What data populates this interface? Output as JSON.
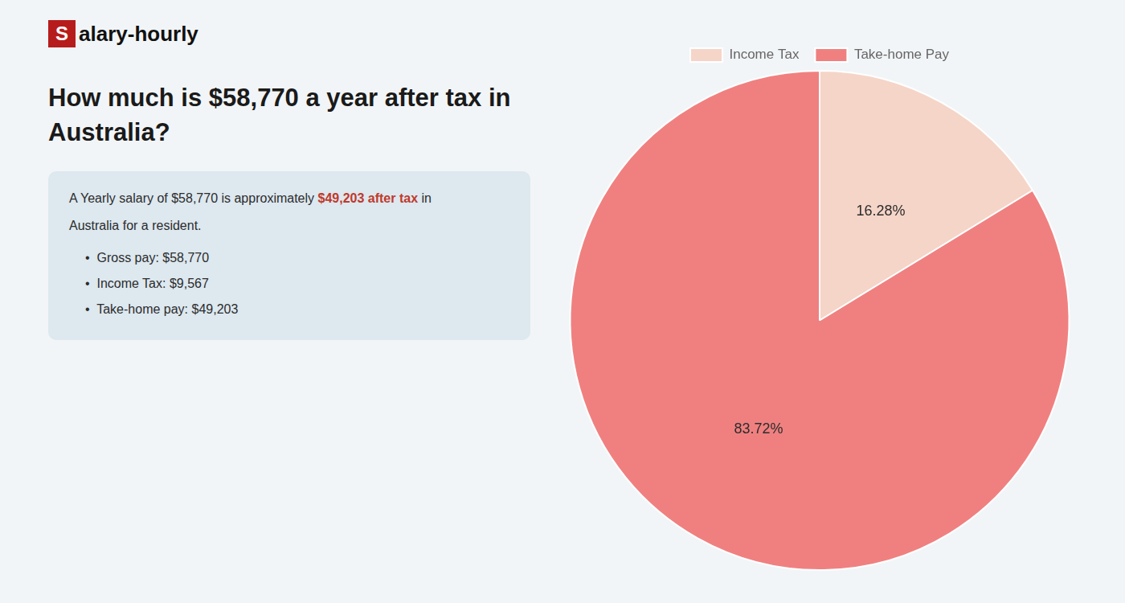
{
  "chart_data": {
    "type": "pie",
    "title": "How much is $58,770 a year after tax in\nAustralia?",
    "categories": [
      "Income Tax",
      "Take-home Pay"
    ],
    "values": [
      16.28,
      83.72
    ],
    "value_labels": [
      "16.28%",
      "83.72%"
    ],
    "colors": [
      "#f5d5c8",
      "#f08080"
    ],
    "data_labels": true,
    "legend": "top",
    "annotations": [
      {
        "text": "S"
      },
      {
        "text": "alary-hourly"
      },
      {
        "text": "A Yearly salary of $58,770 is approximately "
      },
      {
        "text": "$49,203 after tax",
        "color": "#c0392b"
      },
      {
        "text": " in"
      },
      {
        "text": "Australia for a resident."
      },
      {
        "text": "•  Gross pay: $58,770"
      },
      {
        "text": "•  Income Tax: $9,567"
      },
      {
        "text": "•  Take-home pay: $49,203"
      }
    ]
  }
}
